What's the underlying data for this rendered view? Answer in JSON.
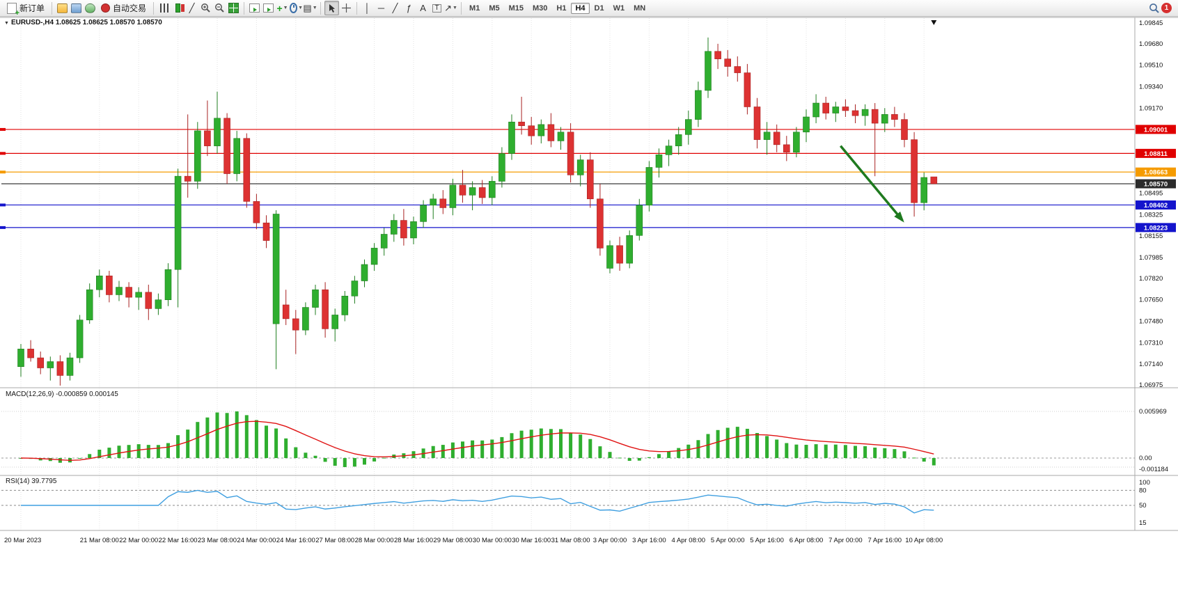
{
  "toolbar": {
    "new_order_label": "新订单",
    "auto_trading_label": "自动交易",
    "text_tool_label": "A",
    "label_tool_label": "T",
    "timeframes": [
      "M1",
      "M5",
      "M15",
      "M30",
      "H1",
      "H4",
      "D1",
      "W1",
      "MN"
    ],
    "active_timeframe": "H4",
    "notification_count": "1"
  },
  "chart": {
    "symbol_info": "EURUSD-,H4  1.08625 1.08625 1.08570 1.08570",
    "colors": {
      "up": "#2fae2f",
      "down": "#dd3232",
      "wick_up": "#1f7d1f",
      "wick_down": "#a82222",
      "macd_histogram": "#2fae2f",
      "macd_signal": "#e01212",
      "rsi_line": "#3f9fe0",
      "arrow": "#1f7a1f",
      "grid": "#e3e3e3",
      "separator": "#a8a8a8"
    },
    "price_scale": [
      "1.09845",
      "1.09680",
      "1.09510",
      "1.09340",
      "1.09170",
      "1.08495",
      "1.08325",
      "1.08155",
      "1.07985",
      "1.07820",
      "1.07650",
      "1.07480",
      "1.07310",
      "1.07140",
      "1.06975"
    ],
    "levels": [
      {
        "price": 1.09001,
        "label": "1.09001",
        "color": "#e00000"
      },
      {
        "price": 1.08811,
        "label": "1.08811",
        "color": "#e00000"
      },
      {
        "price": 1.08663,
        "label": "1.08663",
        "color": "#f59b00"
      },
      {
        "price": 1.08402,
        "label": "1.08402",
        "color": "#1414cc"
      },
      {
        "price": 1.08223,
        "label": "1.08223",
        "color": "#1414cc"
      }
    ],
    "current_price_line": {
      "price": 1.0857,
      "label": "1.08570",
      "color": "#3a3a3a"
    },
    "annotations": {
      "arrow": {
        "from_bar": 83.5,
        "from_price": 1.0887,
        "to_bar": 89.8,
        "to_price": 1.0828
      },
      "current_bar_marker": {
        "bar": 93
      }
    }
  },
  "macd": {
    "label": "MACD(12,26,9)",
    "main_value": "-0.000859",
    "signal_value": "0.000145",
    "scale_labels": [
      "0.005969",
      "0.00",
      "-0.001184"
    ],
    "params": [
      12,
      26,
      9
    ]
  },
  "rsi": {
    "label": "RSI(14)",
    "value": "39.7795",
    "scale_labels": [
      "100",
      "80",
      "50",
      "15"
    ],
    "levels": [
      80,
      50
    ],
    "period": 14
  },
  "chart_data": {
    "type": "candlestick",
    "symbol": "EURUSD-",
    "timeframe": "H4",
    "ohlc_current": {
      "open": "1.08625",
      "high": "1.08625",
      "low": "1.08570",
      "close": "1.08570"
    },
    "y_range": [
      1.06975,
      1.09845
    ],
    "columns": [
      "open",
      "high",
      "low",
      "close"
    ],
    "x_labels": [
      [
        0,
        "20 Mar 2023"
      ],
      [
        8,
        "21 Mar 08:00"
      ],
      [
        12,
        "22 Mar 00:00"
      ],
      [
        16,
        "22 Mar 16:00"
      ],
      [
        20,
        "23 Mar 08:00"
      ],
      [
        24,
        "24 Mar 00:00"
      ],
      [
        28,
        "24 Mar 16:00"
      ],
      [
        32,
        "27 Mar 08:00"
      ],
      [
        36,
        "28 Mar 00:00"
      ],
      [
        40,
        "28 Mar 16:00"
      ],
      [
        44,
        "29 Mar 08:00"
      ],
      [
        48,
        "30 Mar 00:00"
      ],
      [
        52,
        "30 Mar 16:00"
      ],
      [
        56,
        "31 Mar 08:00"
      ],
      [
        60,
        "3 Apr 00:00"
      ],
      [
        64,
        "3 Apr 16:00"
      ],
      [
        68,
        "4 Apr 08:00"
      ],
      [
        72,
        "5 Apr 00:00"
      ],
      [
        76,
        "5 Apr 16:00"
      ],
      [
        80,
        "6 Apr 08:00"
      ],
      [
        84,
        "7 Apr 00:00"
      ],
      [
        88,
        "7 Apr 16:00"
      ],
      [
        92,
        "10 Apr 08:00"
      ]
    ],
    "candles": [
      [
        1.0712,
        1.073,
        1.0704,
        1.0726
      ],
      [
        1.0726,
        1.0733,
        1.0716,
        1.0719
      ],
      [
        1.0719,
        1.0724,
        1.0706,
        1.0711
      ],
      [
        1.0711,
        1.072,
        1.0701,
        1.0716
      ],
      [
        1.0716,
        1.0721,
        1.0697,
        1.0705
      ],
      [
        1.0705,
        1.0723,
        1.0701,
        1.0719
      ],
      [
        1.0719,
        1.0753,
        1.0715,
        1.0749
      ],
      [
        1.0749,
        1.0778,
        1.0746,
        1.0773
      ],
      [
        1.0773,
        1.0789,
        1.0767,
        1.0784
      ],
      [
        1.0784,
        1.0788,
        1.0763,
        1.0769
      ],
      [
        1.0769,
        1.078,
        1.0764,
        1.0775
      ],
      [
        1.0775,
        1.0779,
        1.0759,
        1.0767
      ],
      [
        1.0767,
        1.0775,
        1.0757,
        1.0771
      ],
      [
        1.0771,
        1.0777,
        1.0749,
        1.0758
      ],
      [
        1.0758,
        1.077,
        1.0753,
        1.0765
      ],
      [
        1.0765,
        1.0794,
        1.076,
        1.0789
      ],
      [
        1.0789,
        1.0869,
        1.0759,
        1.0863
      ],
      [
        1.0863,
        1.0912,
        1.0846,
        1.0859
      ],
      [
        1.0859,
        1.0906,
        1.0853,
        1.0899
      ],
      [
        1.0899,
        1.0923,
        1.0879,
        1.0887
      ],
      [
        1.0887,
        1.093,
        1.0881,
        1.0909
      ],
      [
        1.0909,
        1.0913,
        1.0857,
        1.0865
      ],
      [
        1.0865,
        1.0899,
        1.0859,
        1.0893
      ],
      [
        1.0893,
        1.0897,
        1.0838,
        1.0843
      ],
      [
        1.0843,
        1.0849,
        1.0821,
        1.0826
      ],
      [
        1.0826,
        1.0832,
        1.0806,
        1.0812
      ],
      [
        1.0746,
        1.0836,
        1.071,
        1.0833
      ],
      [
        1.0761,
        1.0773,
        1.0745,
        1.075
      ],
      [
        1.075,
        1.0757,
        1.0722,
        1.0741
      ],
      [
        1.0741,
        1.0763,
        1.0737,
        1.0759
      ],
      [
        1.0759,
        1.0777,
        1.0753,
        1.0773
      ],
      [
        1.0773,
        1.0779,
        1.0735,
        1.0742
      ],
      [
        1.0742,
        1.0758,
        1.0732,
        1.0753
      ],
      [
        1.0753,
        1.0772,
        1.0748,
        1.0768
      ],
      [
        1.0768,
        1.0784,
        1.0762,
        1.078
      ],
      [
        1.078,
        1.0797,
        1.0775,
        1.0793
      ],
      [
        1.0793,
        1.081,
        1.0788,
        1.0806
      ],
      [
        1.0806,
        1.0822,
        1.08,
        1.0817
      ],
      [
        1.0817,
        1.0833,
        1.0811,
        1.0828
      ],
      [
        1.0828,
        1.0837,
        1.0808,
        1.0814
      ],
      [
        1.0814,
        1.0831,
        1.0809,
        1.0827
      ],
      [
        1.0827,
        1.0844,
        1.0822,
        1.084
      ],
      [
        1.084,
        1.0849,
        1.0829,
        1.0845
      ],
      [
        1.0845,
        1.0852,
        1.0833,
        1.0838
      ],
      [
        1.0838,
        1.0861,
        1.0832,
        1.0856
      ],
      [
        1.0856,
        1.0868,
        1.0842,
        1.0848
      ],
      [
        1.0848,
        1.0859,
        1.0836,
        1.0854
      ],
      [
        1.0854,
        1.086,
        1.0841,
        1.0846
      ],
      [
        1.0846,
        1.0863,
        1.084,
        1.0859
      ],
      [
        1.0859,
        1.0886,
        1.0854,
        1.0881
      ],
      [
        1.0881,
        1.0912,
        1.0876,
        1.0906
      ],
      [
        1.0906,
        1.0926,
        1.0896,
        1.0903
      ],
      [
        1.0903,
        1.091,
        1.0888,
        1.0895
      ],
      [
        1.0895,
        1.0908,
        1.0889,
        1.0904
      ],
      [
        1.0904,
        1.0913,
        1.0886,
        1.0891
      ],
      [
        1.0891,
        1.0902,
        1.0884,
        1.0898
      ],
      [
        1.0898,
        1.0905,
        1.0858,
        1.0864
      ],
      [
        1.0864,
        1.088,
        1.0855,
        1.0876
      ],
      [
        1.0876,
        1.0882,
        1.0838,
        1.0845
      ],
      [
        1.0845,
        1.0857,
        1.08,
        1.0806
      ],
      [
        1.079,
        1.0812,
        1.0786,
        1.0808
      ],
      [
        1.0808,
        1.0815,
        1.0788,
        1.0794
      ],
      [
        1.0794,
        1.082,
        1.079,
        1.0816
      ],
      [
        1.0816,
        1.0845,
        1.0812,
        1.084
      ],
      [
        1.084,
        1.0875,
        1.0835,
        1.087
      ],
      [
        1.087,
        1.0885,
        1.0862,
        1.088
      ],
      [
        1.088,
        1.0892,
        1.0871,
        1.0887
      ],
      [
        1.0887,
        1.0902,
        1.088,
        1.0896
      ],
      [
        1.0896,
        1.0915,
        1.0888,
        1.0908
      ],
      [
        1.0908,
        1.0938,
        1.0902,
        1.0931
      ],
      [
        1.0931,
        1.0973,
        1.0925,
        1.0962
      ],
      [
        1.0962,
        1.0968,
        1.0948,
        1.0956
      ],
      [
        1.0956,
        1.0963,
        1.0942,
        1.095
      ],
      [
        1.095,
        1.0958,
        1.0938,
        1.0945
      ],
      [
        1.0945,
        1.0952,
        1.0912,
        1.0918
      ],
      [
        1.0918,
        1.0925,
        1.0885,
        1.0892
      ],
      [
        1.0892,
        1.0906,
        1.088,
        1.0898
      ],
      [
        1.0898,
        1.0904,
        1.0882,
        1.0888
      ],
      [
        1.0888,
        1.0895,
        1.0875,
        1.0882
      ],
      [
        1.0882,
        1.0902,
        1.0878,
        1.0898
      ],
      [
        1.0898,
        1.0916,
        1.089,
        1.091
      ],
      [
        1.091,
        1.0928,
        1.0905,
        1.0921
      ],
      [
        1.0921,
        1.0926,
        1.0908,
        1.0913
      ],
      [
        1.0913,
        1.0922,
        1.0906,
        1.0918
      ],
      [
        1.0918,
        1.0924,
        1.091,
        1.0915
      ],
      [
        1.0915,
        1.092,
        1.0905,
        1.0911
      ],
      [
        1.0911,
        1.092,
        1.0903,
        1.0916
      ],
      [
        1.0916,
        1.0921,
        1.0863,
        1.0905
      ],
      [
        1.0905,
        1.0917,
        1.0898,
        1.0912
      ],
      [
        1.0912,
        1.0918,
        1.0902,
        1.0908
      ],
      [
        1.0908,
        1.0913,
        1.0886,
        1.0892
      ],
      [
        1.0892,
        1.0898,
        1.0831,
        1.0842
      ],
      [
        1.0842,
        1.0866,
        1.0836,
        1.0862
      ],
      [
        1.08625,
        1.08625,
        1.0857,
        1.0857
      ]
    ]
  }
}
